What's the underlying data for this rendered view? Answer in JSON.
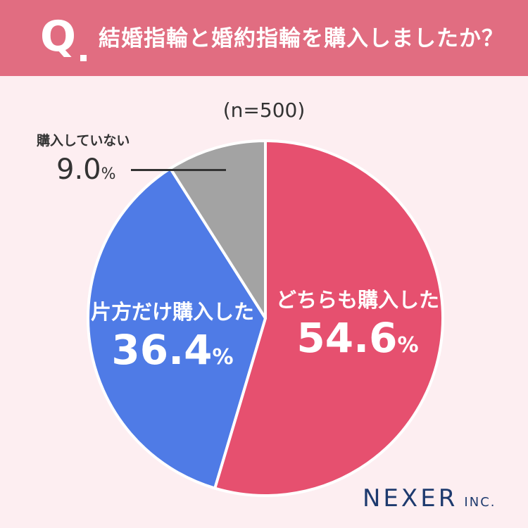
{
  "header": {
    "q_mark": "Q",
    "question": "結婚指輪と婚約指輪を購入しましたか？"
  },
  "sample_size": "(n=500)",
  "colors": {
    "header_bg": "#e16d81",
    "page_bg": "#fdeef1",
    "both": "#e6506f",
    "one": "#4f7be6",
    "none": "#a3a3a3"
  },
  "chart_data": {
    "type": "pie",
    "title": "結婚指輪と婚約指輪を購入しましたか？",
    "slices": [
      {
        "label": "どちらも購入した",
        "value": 54.6,
        "value_text": "54.6",
        "color": "#e6506f"
      },
      {
        "label": "片方だけ購入した",
        "value": 36.4,
        "value_text": "36.4",
        "color": "#4f7be6"
      },
      {
        "label": "購入していない",
        "value": 9.0,
        "value_text": "9.0",
        "color": "#a3a3a3"
      }
    ],
    "unit": "%",
    "start": "12 o'clock",
    "direction": "clockwise"
  },
  "logo": {
    "main": "NEXER",
    "sub": "INC."
  }
}
